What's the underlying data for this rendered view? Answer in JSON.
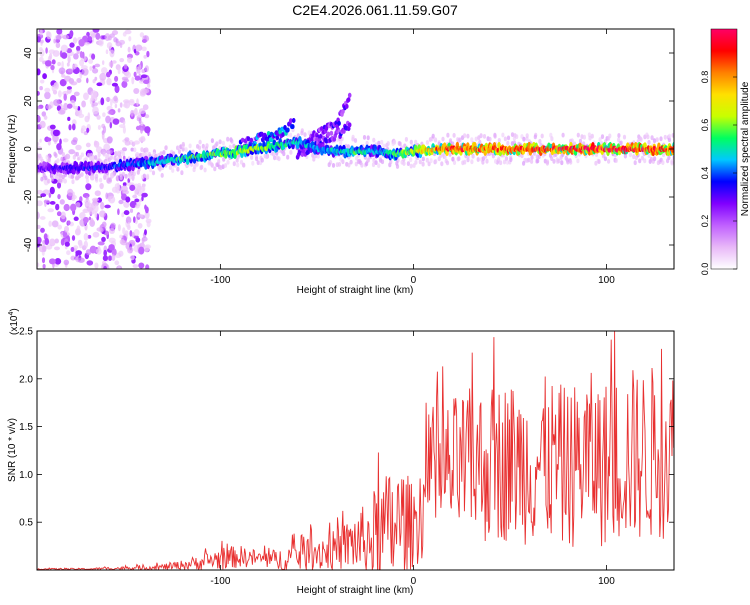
{
  "title": "C2E4.2026.061.11.59.G07",
  "chart_data": [
    {
      "type": "heatmap",
      "name": "spectrogram",
      "xlabel": "Height of straight line (km)",
      "ylabel": "Frequency (Hz)",
      "xlim": [
        -195,
        135
      ],
      "ylim": [
        -50,
        50
      ],
      "xticks": [
        -100,
        0,
        100
      ],
      "xtick_labels": [
        "-100",
        "0",
        "100"
      ],
      "yticks": [
        -40,
        -20,
        0,
        20,
        40
      ],
      "ytick_labels": [
        "-40",
        "-20",
        "0",
        "20",
        "40"
      ],
      "ridge": {
        "x": [
          -195,
          -180,
          -160,
          -140,
          -120,
          -100,
          -80,
          -60,
          -50,
          -40,
          -30,
          -20,
          -10,
          0,
          20,
          50,
          80,
          110,
          135
        ],
        "y": [
          -8,
          -8,
          -7.5,
          -6,
          -4,
          -2,
          0,
          3,
          0,
          -1,
          -1,
          -1,
          -2,
          -1,
          0,
          0,
          0,
          0,
          0
        ],
        "amplitude": [
          0.25,
          0.3,
          0.35,
          0.4,
          0.5,
          0.55,
          0.6,
          0.45,
          0.4,
          0.45,
          0.5,
          0.4,
          0.5,
          0.6,
          0.85,
          0.8,
          0.85,
          0.9,
          0.8
        ]
      },
      "secondary_tracks": [
        {
          "x": [
            -90,
            -80,
            -70,
            -62
          ],
          "y": [
            2,
            4,
            6,
            11
          ],
          "amplitude": [
            0.3,
            0.4,
            0.45,
            0.4
          ]
        },
        {
          "x": [
            -60,
            -50,
            -40,
            -33
          ],
          "y": [
            2,
            6,
            10,
            22
          ],
          "amplitude": [
            0.2,
            0.25,
            0.3,
            0.25
          ]
        },
        {
          "x": [
            -60,
            -50,
            -40,
            -33
          ],
          "y": [
            -2,
            2,
            6,
            10
          ],
          "amplitude": [
            0.25,
            0.3,
            0.3,
            0.3
          ]
        }
      ],
      "noise_region_x": [
        -195,
        -137
      ]
    },
    {
      "type": "colorbar",
      "name": "amplitude-scale",
      "label": "Normalized spectral amplitude",
      "range": [
        0,
        1
      ],
      "ticks": [
        0.0,
        0.2,
        0.4,
        0.6,
        0.8
      ],
      "tick_labels": [
        "0.0",
        "0.2",
        "0.4",
        "0.6",
        "0.8"
      ],
      "colors": [
        "#ffffff",
        "#e8b8f8",
        "#c060ff",
        "#8000ff",
        "#0000ff",
        "#00c8ff",
        "#00ff60",
        "#c8ff00",
        "#ffe000",
        "#ff8000",
        "#ff0000",
        "#ff0066"
      ]
    },
    {
      "type": "line",
      "name": "snr",
      "xlabel": "Height of straight line (km)",
      "ylabel": "SNR (10 * v/v)",
      "scale_label": "(x10",
      "scale_exponent": "4",
      "scale_suffix": ")",
      "color": "#e83030",
      "xlim": [
        -195,
        135
      ],
      "ylim": [
        0,
        2.5
      ],
      "xticks": [
        -100,
        0,
        100
      ],
      "xtick_labels": [
        "-100",
        "0",
        "100"
      ],
      "yticks": [
        0.5,
        1.0,
        1.5,
        2.0,
        2.5
      ],
      "ytick_labels": [
        "0.5",
        "1.0",
        "1.5",
        "2.0",
        "2.5"
      ],
      "series": [
        {
          "name": "SNR envelope",
          "x": [
            -195,
            -170,
            -150,
            -130,
            -120,
            -110,
            -100,
            -90,
            -80,
            -70,
            -60,
            -50,
            -40,
            -35,
            -30,
            -25,
            -20,
            -15,
            -10,
            -5,
            0,
            5,
            10,
            20,
            30,
            40,
            50,
            60,
            70,
            80,
            90,
            100,
            110,
            120,
            130,
            135
          ],
          "center": [
            0.01,
            0.01,
            0.02,
            0.03,
            0.05,
            0.08,
            0.12,
            0.14,
            0.12,
            0.1,
            0.15,
            0.2,
            0.2,
            0.25,
            0.3,
            0.3,
            0.35,
            0.4,
            0.45,
            0.5,
            0.45,
            0.7,
            0.9,
            1.05,
            1.1,
            1.1,
            1.15,
            1.1,
            1.15,
            1.05,
            1.2,
            1.1,
            1.2,
            1.2,
            1.25,
            1.3
          ],
          "spread": [
            0.01,
            0.01,
            0.02,
            0.04,
            0.06,
            0.1,
            0.14,
            0.14,
            0.1,
            0.14,
            0.2,
            0.25,
            0.25,
            0.3,
            0.4,
            0.45,
            0.6,
            0.7,
            0.8,
            0.7,
            0.5,
            0.7,
            0.8,
            0.9,
            0.95,
            1.0,
            1.0,
            1.0,
            1.05,
            1.0,
            1.05,
            1.05,
            1.1,
            1.1,
            1.1,
            1.0
          ]
        }
      ]
    }
  ]
}
